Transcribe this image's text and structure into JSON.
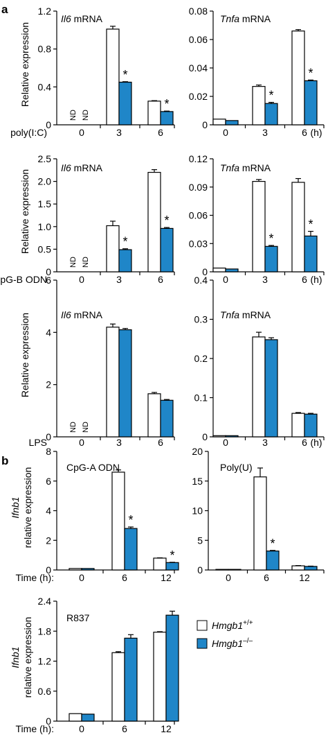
{
  "colors": {
    "wt": "#ffffff",
    "ko": "#1f86c8",
    "stroke": "#000000"
  },
  "section_labels": {
    "a": "a",
    "b": "b"
  },
  "legend": {
    "wt_gene": "Hmgb1",
    "wt_sup": "+/+",
    "ko_gene": "Hmgb1",
    "ko_sup": "–/–"
  },
  "chart_data": [
    {
      "type": "bar",
      "id": "a1",
      "title": "Il6",
      "title_suffix": " mRNA",
      "ylabel": "Relative expression",
      "row_label": "poly(I:C)",
      "categories": [
        "0",
        "3",
        "6"
      ],
      "unit": "",
      "ylim": [
        0,
        1.2
      ],
      "yticks": [
        "0",
        "0.4",
        "0.8",
        "1.2"
      ],
      "series": [
        {
          "key": "wt",
          "values": [
            null,
            1.01,
            0.25
          ],
          "err": [
            0,
            0.03,
            0.005
          ]
        },
        {
          "key": "ko",
          "values": [
            null,
            0.45,
            0.14
          ],
          "err": [
            0,
            0.005,
            0.005
          ]
        }
      ],
      "nd": [
        "ND",
        "ND"
      ],
      "sig": [
        false,
        true,
        true
      ],
      "sig_mark": "*"
    },
    {
      "type": "bar",
      "id": "a2",
      "title": "Tnfa",
      "title_suffix": " mRNA",
      "ylabel": "",
      "row_label": "",
      "categories": [
        "0",
        "3",
        "6"
      ],
      "unit": "(h)",
      "ylim": [
        0,
        0.08
      ],
      "yticks": [
        "0",
        "0.02",
        "0.04",
        "0.06",
        "0.08"
      ],
      "series": [
        {
          "key": "wt",
          "values": [
            0.004,
            0.027,
            0.066
          ],
          "err": [
            0,
            0.001,
            0.001
          ]
        },
        {
          "key": "ko",
          "values": [
            0.003,
            0.015,
            0.031
          ],
          "err": [
            0,
            0.0008,
            0.0005
          ]
        }
      ],
      "nd": [],
      "sig": [
        false,
        true,
        true
      ],
      "sig_mark": "*"
    },
    {
      "type": "bar",
      "id": "a3",
      "title": "Il6",
      "title_suffix": " mRNA",
      "ylabel": "Relative expression",
      "row_label": "CpG-B ODN",
      "categories": [
        "0",
        "3",
        "6"
      ],
      "unit": "",
      "ylim": [
        0,
        2.5
      ],
      "yticks": [
        "0",
        "0.5",
        "1.0",
        "1.5",
        "2.0",
        "2.5"
      ],
      "series": [
        {
          "key": "wt",
          "values": [
            null,
            1.02,
            2.2
          ],
          "err": [
            0,
            0.1,
            0.06
          ]
        },
        {
          "key": "ko",
          "values": [
            null,
            0.49,
            0.96
          ],
          "err": [
            0,
            0.02,
            0.02
          ]
        }
      ],
      "nd": [
        "ND",
        "ND"
      ],
      "sig": [
        false,
        true,
        true
      ],
      "sig_mark": "*"
    },
    {
      "type": "bar",
      "id": "a4",
      "title": "Tnfa",
      "title_suffix": " mRNA",
      "ylabel": "",
      "row_label": "",
      "categories": [
        "0",
        "3",
        "6"
      ],
      "unit": "(h)",
      "ylim": [
        0,
        0.12
      ],
      "yticks": [
        "0",
        "0.03",
        "0.06",
        "0.09",
        "0.12"
      ],
      "series": [
        {
          "key": "wt",
          "values": [
            0.004,
            0.096,
            0.095
          ],
          "err": [
            0,
            0.002,
            0.004
          ]
        },
        {
          "key": "ko",
          "values": [
            0.003,
            0.027,
            0.038
          ],
          "err": [
            0,
            0.001,
            0.005
          ]
        }
      ],
      "nd": [],
      "sig": [
        false,
        true,
        true
      ],
      "sig_mark": "*"
    },
    {
      "type": "bar",
      "id": "a5",
      "title": "Il6",
      "title_suffix": " mRNA",
      "ylabel": "Relative expression",
      "row_label": "LPS",
      "categories": [
        "0",
        "3",
        "6"
      ],
      "unit": "",
      "ylim": [
        0,
        6
      ],
      "yticks": [
        "0",
        "2",
        "4",
        "6"
      ],
      "series": [
        {
          "key": "wt",
          "values": [
            null,
            4.2,
            1.65
          ],
          "err": [
            0,
            0.12,
            0.05
          ]
        },
        {
          "key": "ko",
          "values": [
            null,
            4.1,
            1.4
          ],
          "err": [
            0,
            0.05,
            0.03
          ]
        }
      ],
      "nd": [
        "ND",
        "ND"
      ],
      "sig": [
        false,
        false,
        false
      ],
      "sig_mark": "*"
    },
    {
      "type": "bar",
      "id": "a6",
      "title": "Tnfa",
      "title_suffix": " mRNA",
      "ylabel": "",
      "row_label": "",
      "categories": [
        "0",
        "3",
        "6"
      ],
      "unit": "(h)",
      "ylim": [
        0,
        0.4
      ],
      "yticks": [
        "0",
        "0.1",
        "0.2",
        "0.3",
        "0.4"
      ],
      "series": [
        {
          "key": "wt",
          "values": [
            0.003,
            0.255,
            0.06
          ],
          "err": [
            0,
            0.012,
            0.002
          ]
        },
        {
          "key": "ko",
          "values": [
            0.003,
            0.248,
            0.058
          ],
          "err": [
            0,
            0.005,
            0.002
          ]
        }
      ],
      "nd": [],
      "sig": [
        false,
        false,
        false
      ],
      "sig_mark": "*"
    },
    {
      "type": "bar",
      "id": "b1",
      "title": "CpG-A ODN",
      "title_suffix": "",
      "ylabel_it": "Ifnb1",
      "ylabel": "relative expression",
      "row_label": "Time (h):",
      "categories": [
        "0",
        "6",
        "12"
      ],
      "unit": "",
      "ylim": [
        0,
        8
      ],
      "yticks": [
        "0",
        "2",
        "4",
        "6",
        "8"
      ],
      "series": [
        {
          "key": "wt",
          "values": [
            0.1,
            6.6,
            0.8
          ],
          "err": [
            0,
            0.15,
            0.02
          ]
        },
        {
          "key": "ko",
          "values": [
            0.1,
            2.8,
            0.5
          ],
          "err": [
            0,
            0.1,
            0.02
          ]
        }
      ],
      "nd": [],
      "sig": [
        false,
        true,
        true
      ],
      "sig_mark": "*"
    },
    {
      "type": "bar",
      "id": "b2",
      "title": "Poly(U)",
      "title_suffix": "",
      "ylabel": "",
      "row_label": "",
      "categories": [
        "0",
        "6",
        "12"
      ],
      "unit": "",
      "ylim": [
        0,
        20
      ],
      "yticks": [
        "0",
        "5",
        "10",
        "15",
        "20"
      ],
      "series": [
        {
          "key": "wt",
          "values": [
            0.1,
            15.7,
            0.7
          ],
          "err": [
            0,
            1.5,
            0.05
          ]
        },
        {
          "key": "ko",
          "values": [
            0.1,
            3.2,
            0.6
          ],
          "err": [
            0,
            0.1,
            0.05
          ]
        }
      ],
      "nd": [],
      "sig": [
        false,
        true,
        false
      ],
      "sig_mark": "*"
    },
    {
      "type": "bar",
      "id": "b3",
      "title": "R837",
      "title_suffix": "",
      "ylabel_it": "Ifnb1",
      "ylabel": "relative expression",
      "row_label": "Time (h):",
      "categories": [
        "0",
        "6",
        "12"
      ],
      "unit": "",
      "ylim": [
        0,
        2.4
      ],
      "yticks": [
        "0",
        "0.6",
        "1.2",
        "1.8",
        "2.4"
      ],
      "series": [
        {
          "key": "wt",
          "values": [
            0.15,
            1.37,
            1.78
          ],
          "err": [
            0,
            0.02,
            0.01
          ]
        },
        {
          "key": "ko",
          "values": [
            0.14,
            1.66,
            2.12
          ],
          "err": [
            0,
            0.07,
            0.08
          ]
        }
      ],
      "nd": [],
      "sig": [
        false,
        false,
        false
      ],
      "sig_mark": "*"
    }
  ]
}
